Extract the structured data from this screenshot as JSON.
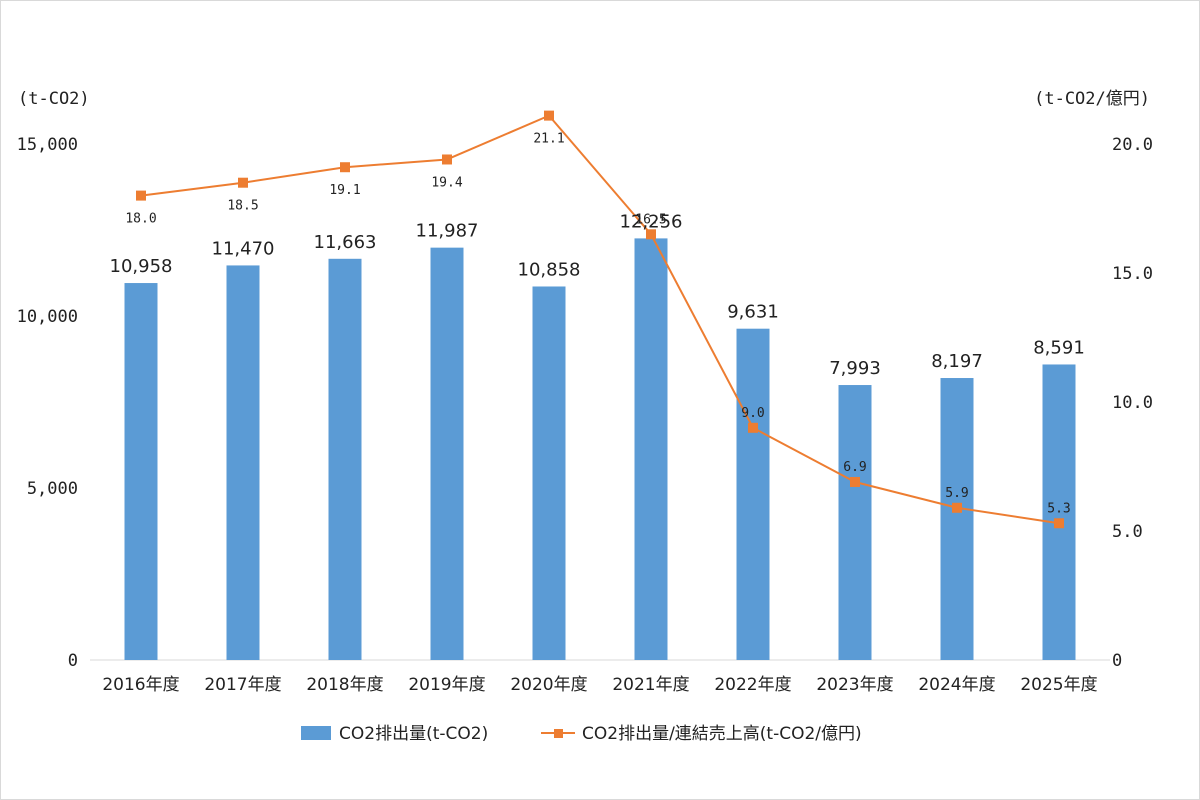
{
  "chart_data": {
    "type": "bar",
    "categories": [
      "2016年度",
      "2017年度",
      "2018年度",
      "2019年度",
      "2020年度",
      "2021年度",
      "2022年度",
      "2023年度",
      "2024年度",
      "2025年度"
    ],
    "series": [
      {
        "name": "CO2排出量(t-CO2)",
        "type": "bar",
        "axis": "left",
        "color": "#5b9bd5",
        "values": [
          10958,
          11470,
          11663,
          11987,
          10858,
          12256,
          9631,
          7993,
          8197,
          8591
        ],
        "labels": [
          "10,958",
          "11,470",
          "11,663",
          "11,987",
          "10,858",
          "12,256",
          "9,631",
          "7,993",
          "8,197",
          "8,591"
        ]
      },
      {
        "name": "CO2排出量/連結売上高(t-CO2/億円)",
        "type": "line",
        "axis": "right",
        "color": "#ed7d31",
        "values": [
          18.0,
          18.5,
          19.1,
          19.4,
          21.1,
          16.5,
          9.0,
          6.9,
          5.9,
          5.3
        ],
        "labels": [
          "18.0",
          "18.5",
          "19.1",
          "19.4",
          "21.1",
          "16.5",
          "9.0",
          "6.9",
          "5.9",
          "5.3"
        ]
      }
    ],
    "left_axis": {
      "unit": "(t-CO2)",
      "ylim": [
        0,
        15000
      ],
      "ticks": [
        0,
        5000,
        10000,
        15000
      ],
      "tick_labels": [
        "0",
        "5,000",
        "10,000",
        "15,000"
      ]
    },
    "right_axis": {
      "unit": "(t-CO2/億円)",
      "ylim": [
        0,
        20
      ],
      "ticks": [
        0,
        5,
        10,
        15,
        20
      ],
      "tick_labels": [
        "0",
        "5.0",
        "10.0",
        "15.0",
        "20.0"
      ]
    },
    "grid": false,
    "legend": "bottom-center"
  }
}
